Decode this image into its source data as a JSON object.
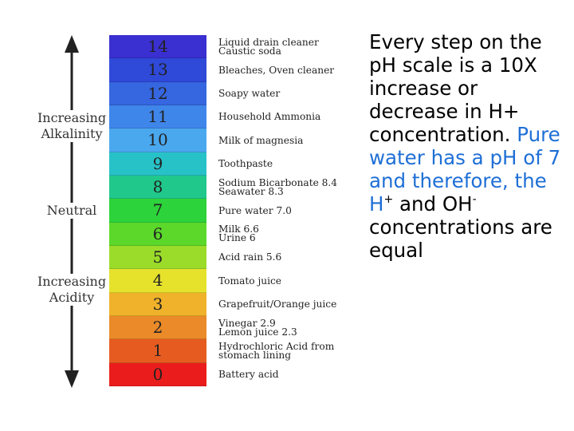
{
  "scale": {
    "bands": [
      {
        "value": "14",
        "color": "#3a2fd0"
      },
      {
        "value": "13",
        "color": "#2f49d8"
      },
      {
        "value": "12",
        "color": "#3666e0"
      },
      {
        "value": "11",
        "color": "#3f86ea"
      },
      {
        "value": "10",
        "color": "#4aa8ee"
      },
      {
        "value": "9",
        "color": "#27c2c8"
      },
      {
        "value": "8",
        "color": "#20c88c"
      },
      {
        "value": "7",
        "color": "#2cd33a"
      },
      {
        "value": "6",
        "color": "#5cd82a"
      },
      {
        "value": "5",
        "color": "#9bdc2a"
      },
      {
        "value": "4",
        "color": "#e6e22c"
      },
      {
        "value": "3",
        "color": "#f0b22a"
      },
      {
        "value": "2",
        "color": "#ea8a28"
      },
      {
        "value": "1",
        "color": "#e65c20"
      },
      {
        "value": "0",
        "color": "#ea1c1c"
      }
    ]
  },
  "axis": {
    "alkalinity_line1": "Increasing",
    "alkalinity_line2": "Alkalinity",
    "neutral": "Neutral",
    "acidity_line1": "Increasing",
    "acidity_line2": "Acidity",
    "arrow_color": "#222222"
  },
  "examples": [
    {
      "lines": [
        "Liquid drain cleaner",
        "Caustic soda"
      ]
    },
    {
      "lines": [
        "Bleaches, Oven cleaner"
      ]
    },
    {
      "lines": [
        "Soapy water"
      ]
    },
    {
      "lines": [
        "Household Ammonia"
      ]
    },
    {
      "lines": [
        "Milk of magnesia"
      ]
    },
    {
      "lines": [
        "Toothpaste"
      ]
    },
    {
      "lines": [
        "Sodium Bicarbonate 8.4",
        "Seawater 8.3"
      ]
    },
    {
      "lines": [
        "Pure water 7.0"
      ]
    },
    {
      "lines": [
        "Milk 6.6",
        "Urine 6"
      ]
    },
    {
      "lines": [
        "Acid rain 5.6"
      ]
    },
    {
      "lines": [
        "Tomato juice"
      ]
    },
    {
      "lines": [
        "Grapefruit/Orange juice"
      ]
    },
    {
      "lines": [
        "Vinegar 2.9",
        "Lemon juice 2.3"
      ]
    },
    {
      "lines": [
        "Hydrochloric Acid from",
        "stomach lining"
      ]
    },
    {
      "lines": [
        "Battery acid"
      ]
    }
  ],
  "info": {
    "part1": "Every step on the pH scale is a 10X increase or decrease in H+ concentration.",
    "part2": "Pure water has a pH of 7 and therefore, the H",
    "sup_plus": "+",
    "part3": " and OH",
    "sup_minus": "-",
    "part4": " concentrations are equal"
  }
}
